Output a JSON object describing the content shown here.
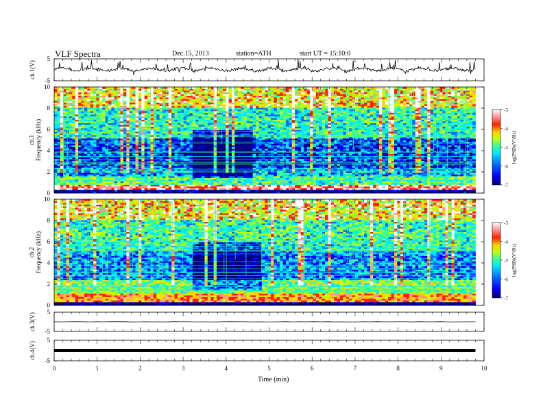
{
  "header": {
    "title": "VLF  Spectra",
    "date": "Dec.15, 2013",
    "station": "station=ATH",
    "start_ut": "start  UT =   15:10:0"
  },
  "colorbar": {
    "label": "log(PSD)(V²/Hz)",
    "ticks": [
      "-3",
      "-4",
      "-5",
      "-6",
      "-7"
    ],
    "colors": [
      "#000080",
      "#0000ff",
      "#0070ff",
      "#00e8ff",
      "#40ff90",
      "#c8ff00",
      "#ffd000",
      "#ff2000",
      "#ff9090",
      "#ffffff"
    ]
  },
  "chart_data": [
    {
      "type": "line",
      "panel": "ch1-waveform",
      "ylabel": "ch.1(V)",
      "yticks": [
        "5",
        "-5"
      ],
      "ylim": [
        -5,
        5
      ],
      "x": [
        0,
        1,
        2,
        3,
        4,
        5,
        6,
        7,
        8,
        9,
        9.8
      ],
      "y": [
        0.2,
        0.2,
        0.1,
        0.2,
        0.2,
        0.1,
        0.2,
        0.2,
        0.1,
        0.2,
        0.2
      ],
      "note_color": "#000000"
    },
    {
      "type": "heatmap",
      "panel": "ch1-spectrogram",
      "ylabel": "Frequency (kHz)",
      "channel_label": "ch.1",
      "yticks": [
        "0",
        "2",
        "4",
        "6",
        "8",
        "10"
      ],
      "ylim": [
        0,
        10
      ],
      "xlim": [
        0,
        10
      ],
      "data_end_min": 9.8,
      "freq_bands_khz": [
        {
          "from": 0,
          "to": 0.4,
          "log_psd": -6.8
        },
        {
          "from": 0.4,
          "to": 0.8,
          "log_psd": -3.5
        },
        {
          "from": 0.8,
          "to": 1.6,
          "log_psd": -5.2
        },
        {
          "from": 1.6,
          "to": 2.4,
          "log_psd": -5.8
        },
        {
          "from": 2.4,
          "to": 5.2,
          "log_psd": -6.2
        },
        {
          "from": 5.2,
          "to": 8.0,
          "log_psd": -5.4
        },
        {
          "from": 8.0,
          "to": 10,
          "log_psd": -4.6
        }
      ],
      "quiet_interval_min": [
        3.2,
        4.6
      ]
    },
    {
      "type": "heatmap",
      "panel": "ch2-spectrogram",
      "ylabel": "Frequency (kHz)",
      "channel_label": "ch.2",
      "yticks": [
        "0",
        "2",
        "4",
        "6",
        "8",
        "10"
      ],
      "ylim": [
        0,
        10
      ],
      "xlim": [
        0,
        10
      ],
      "data_end_min": 9.8,
      "freq_bands_khz": [
        {
          "from": 0,
          "to": 0.4,
          "log_psd": -6.9
        },
        {
          "from": 0.4,
          "to": 1.2,
          "log_psd": -4.2
        },
        {
          "from": 1.2,
          "to": 2.4,
          "log_psd": -5.0
        },
        {
          "from": 2.4,
          "to": 5.2,
          "log_psd": -5.9
        },
        {
          "from": 5.2,
          "to": 8.0,
          "log_psd": -5.3
        },
        {
          "from": 8.0,
          "to": 10,
          "log_psd": -4.6
        }
      ],
      "quiet_interval_min": [
        3.2,
        4.8
      ]
    },
    {
      "type": "line",
      "panel": "ch3-waveform",
      "ylabel": "ch.3(V)",
      "yticks": [
        "5",
        "-5"
      ],
      "ylim": [
        -5,
        5
      ],
      "x": [
        0,
        9.8
      ],
      "y": [
        0,
        0
      ]
    },
    {
      "type": "line",
      "panel": "ch4-waveform",
      "ylabel": "ch.4(V)",
      "yticks": [
        "5",
        "-5"
      ],
      "ylim": [
        -5,
        5
      ],
      "x": [
        0,
        9.8
      ],
      "y": [
        0,
        0
      ]
    }
  ],
  "x_axis": {
    "label": "Time  (min)",
    "ticks": [
      "0",
      "1",
      "2",
      "3",
      "4",
      "5",
      "6",
      "7",
      "8",
      "9",
      "10"
    ],
    "xlim": [
      0,
      10
    ]
  }
}
